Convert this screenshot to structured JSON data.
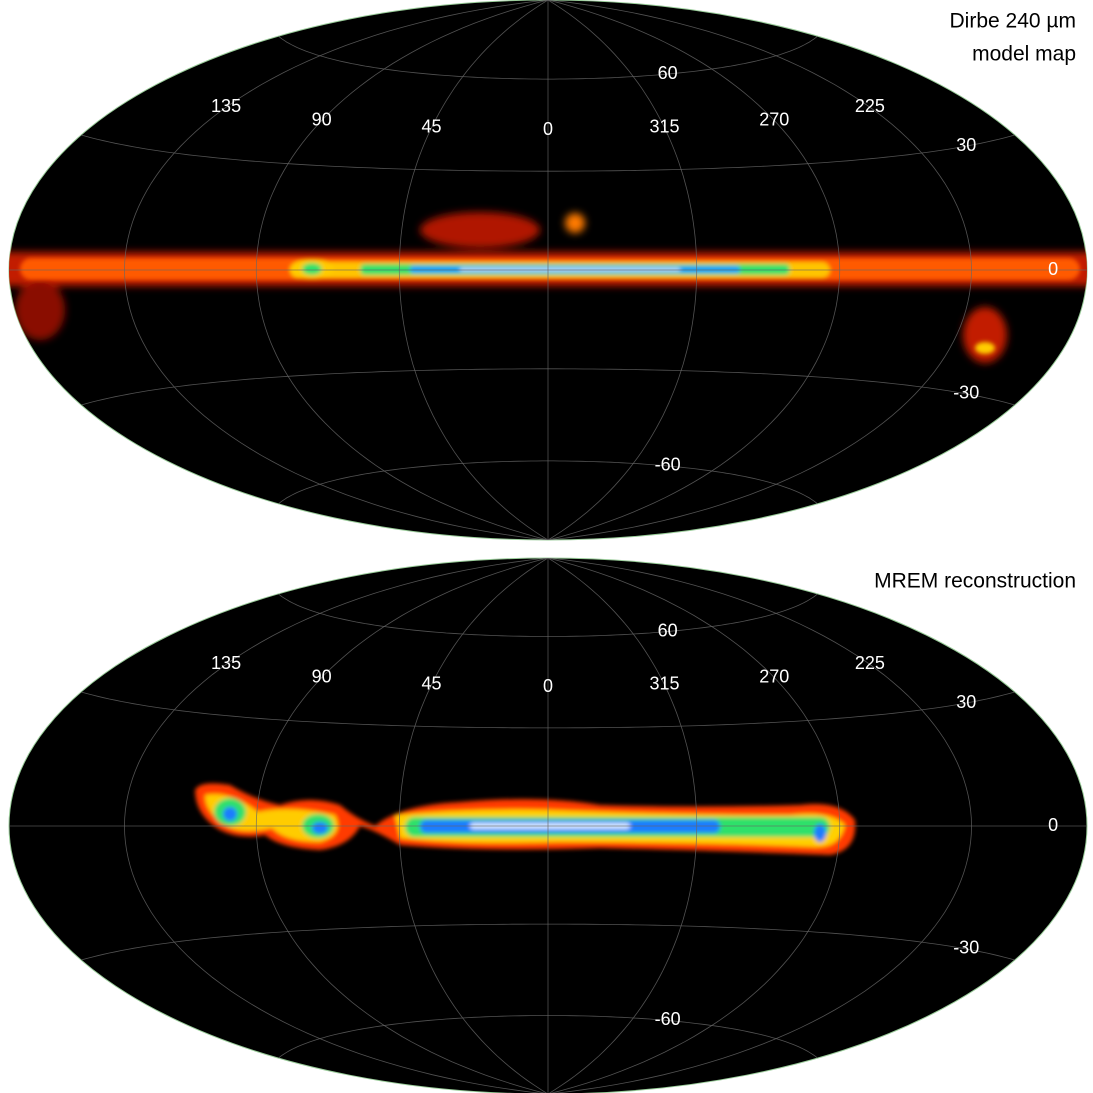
{
  "panels": [
    {
      "title_lines": [
        "Dirbe 240 µm",
        "model map"
      ],
      "lon_labels": [
        135,
        90,
        45,
        0,
        315,
        270,
        225
      ],
      "lat_labels": [
        60,
        30,
        0,
        -30,
        -60
      ]
    },
    {
      "title_lines": [
        "MREM reconstruction"
      ],
      "lon_labels": [
        135,
        90,
        45,
        0,
        315,
        270,
        225
      ],
      "lat_labels": [
        60,
        30,
        0,
        -30,
        -60
      ]
    }
  ]
}
